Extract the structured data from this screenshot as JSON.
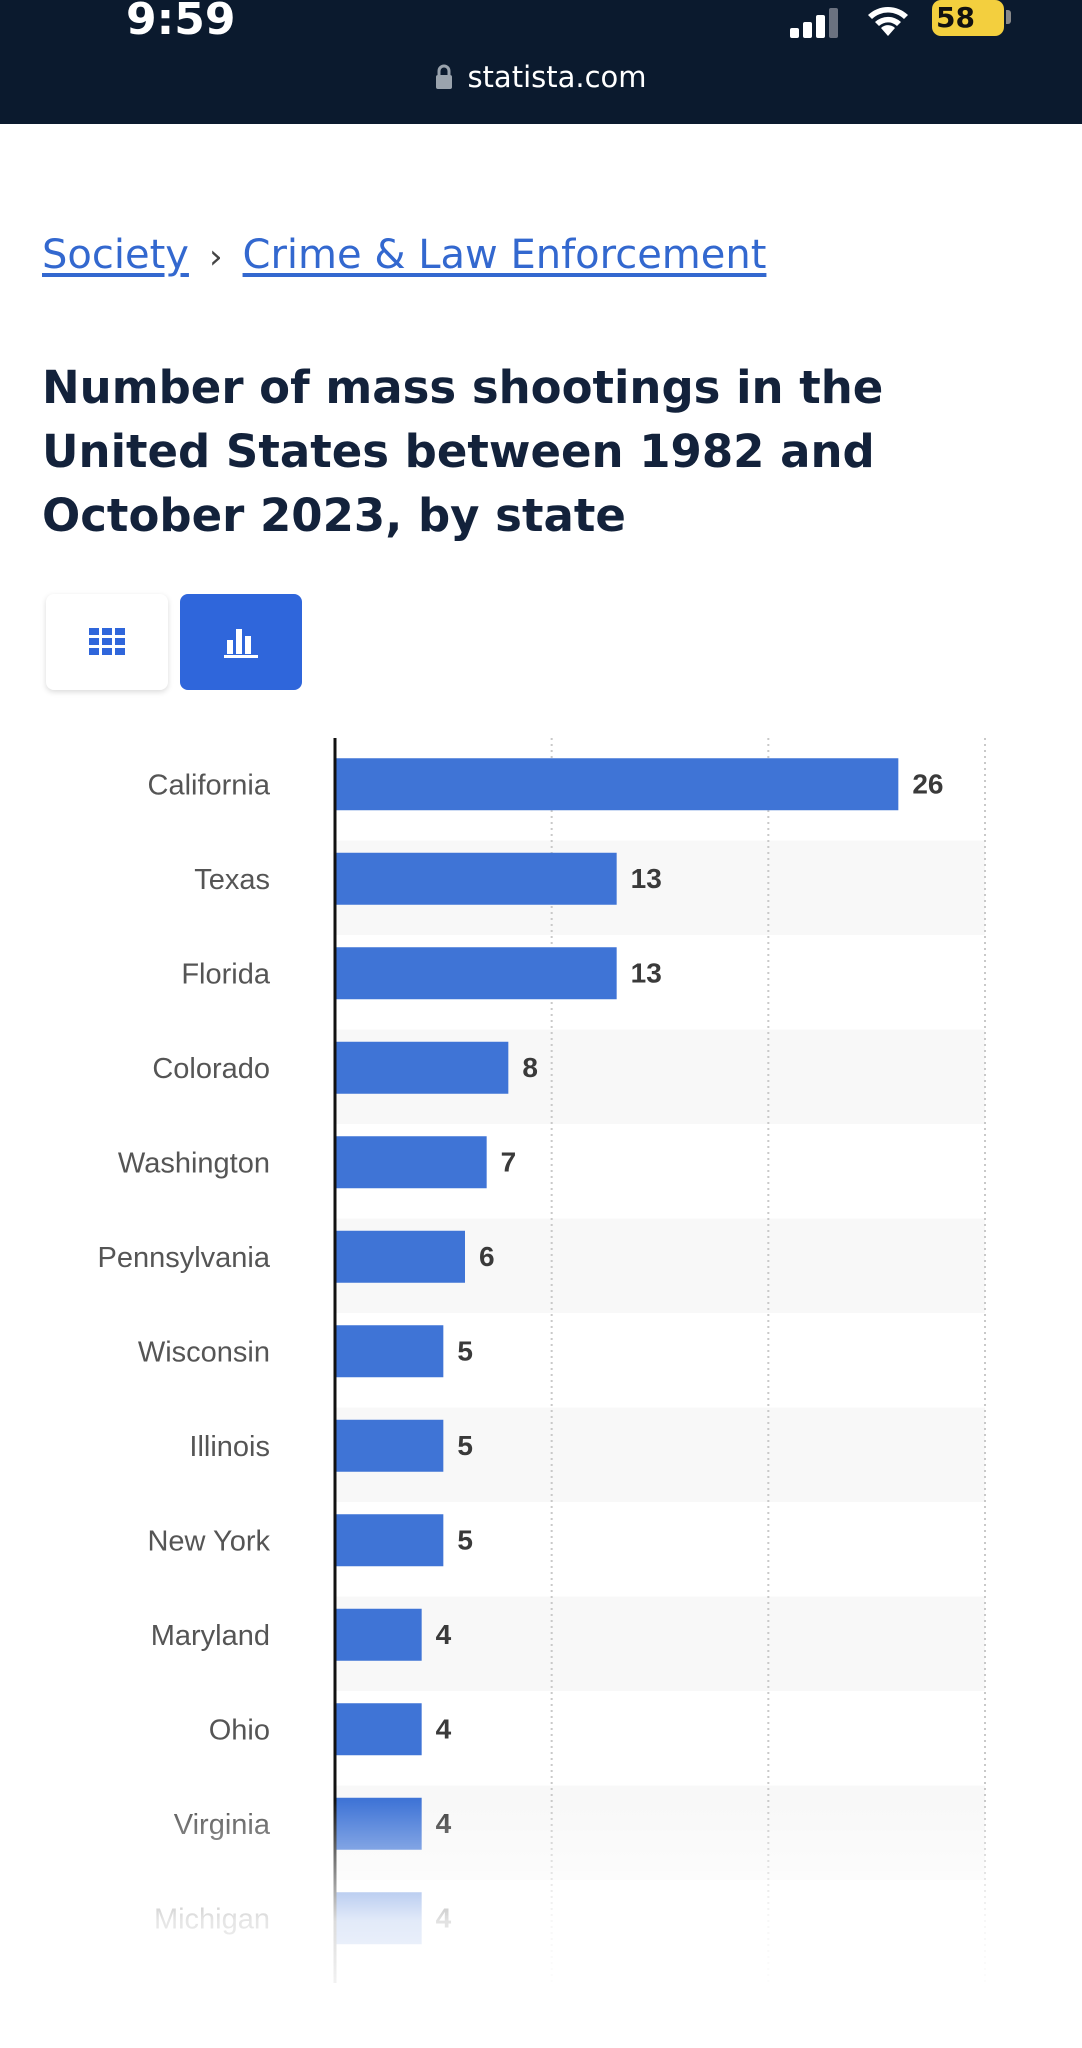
{
  "status_bar": {
    "time": "9:59",
    "battery": "58"
  },
  "browser": {
    "url": "statista.com"
  },
  "breadcrumb": {
    "items": [
      "Society",
      "Crime & Law Enforcement"
    ],
    "separator": "›"
  },
  "page_title": "Number of mass shootings in the United States between 1982 and October 2023, by state",
  "colors": {
    "bar": "#3f74d6",
    "accent": "#2f66db",
    "header_bg": "#0b1a2e",
    "band": "#f8f8f8"
  },
  "chart_data": {
    "type": "bar",
    "orientation": "horizontal",
    "categories": [
      "California",
      "Texas",
      "Florida",
      "Colorado",
      "Washington",
      "Pennsylvania",
      "Wisconsin",
      "Illinois",
      "New York",
      "Maryland",
      "Ohio",
      "Virginia",
      "Michigan"
    ],
    "values": [
      26,
      13,
      13,
      8,
      7,
      6,
      5,
      5,
      5,
      4,
      4,
      4,
      4
    ],
    "xlim": [
      0,
      30
    ],
    "grid": true,
    "data_labels": true
  }
}
